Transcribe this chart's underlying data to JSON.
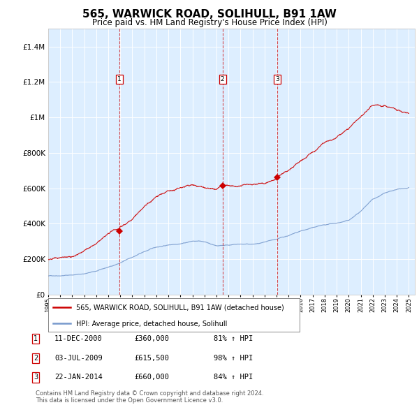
{
  "title": "565, WARWICK ROAD, SOLIHULL, B91 1AW",
  "subtitle": "Price paid vs. HM Land Registry's House Price Index (HPI)",
  "title_fontsize": 11,
  "subtitle_fontsize": 8.5,
  "background_color": "#ffffff",
  "plot_background_color": "#ddeeff",
  "ylim": [
    0,
    1500000
  ],
  "yticks": [
    0,
    200000,
    400000,
    600000,
    800000,
    1000000,
    1200000,
    1400000
  ],
  "sale_years": [
    2000.92,
    2009.5,
    2014.05
  ],
  "sale_prices": [
    360000,
    615500,
    660000
  ],
  "sale_labels": [
    "1",
    "2",
    "3"
  ],
  "sale_info": [
    {
      "num": "1",
      "date": "11-DEC-2000",
      "price": "£360,000",
      "pct": "81% ↑ HPI"
    },
    {
      "num": "2",
      "date": "03-JUL-2009",
      "price": "£615,500",
      "pct": "98% ↑ HPI"
    },
    {
      "num": "3",
      "date": "22-JAN-2014",
      "price": "£660,000",
      "pct": "84% ↑ HPI"
    }
  ],
  "legend_label_red": "565, WARWICK ROAD, SOLIHULL, B91 1AW (detached house)",
  "legend_label_blue": "HPI: Average price, detached house, Solihull",
  "footer": "Contains HM Land Registry data © Crown copyright and database right 2024.\nThis data is licensed under the Open Government Licence v3.0.",
  "red_color": "#cc0000",
  "blue_color": "#7799cc",
  "grid_color": "#ffffff",
  "xstart": 1995,
  "xend": 2025
}
